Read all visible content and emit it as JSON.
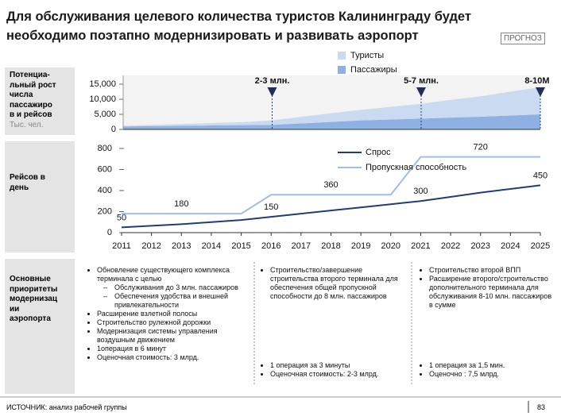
{
  "title": [
    "Для обслуживания целевого количества туристов Калининграду будет",
    "необходимо поэтапно модернизировать и развивать аэропорт"
  ],
  "badge": "ПРОГНОЗ",
  "chart_data": [
    {
      "type": "area",
      "stacked": true,
      "side_label": [
        "Потенциа-",
        "льный рост",
        "числа",
        "пассажиро",
        "в и рейсов"
      ],
      "unit": "Тыс. чел.",
      "x": [
        2011,
        2012,
        2013,
        2014,
        2015,
        2016,
        2017,
        2018,
        2019,
        2020,
        2021,
        2022,
        2023,
        2024,
        2025
      ],
      "xlim": [
        2011,
        2025
      ],
      "ylim": [
        0,
        15000
      ],
      "yticks": [
        0,
        {
          "value": 5000,
          "label": "5,000"
        },
        {
          "value": 10000,
          "label": "10,000"
        },
        {
          "value": 15000,
          "label": "15,000"
        }
      ],
      "series": [
        {
          "name": "Туристы",
          "color": "#c9daf1",
          "values": [
            200,
            400,
            600,
            800,
            1000,
            1500,
            2200,
            2900,
            3500,
            4200,
            4900,
            5900,
            6800,
            7900,
            9000
          ]
        },
        {
          "name": "Пассажиры",
          "color": "#8fb0e2",
          "values": [
            1000,
            1100,
            1200,
            1300,
            1400,
            1500,
            2000,
            2500,
            3000,
            3300,
            3600,
            3900,
            4200,
            4600,
            5000
          ]
        }
      ],
      "annotations": [
        {
          "x": 2016,
          "text": "2-3 млн."
        },
        {
          "x": 2021,
          "text": "5-7 млн."
        },
        {
          "x": 2025,
          "text": "8-10М"
        }
      ]
    },
    {
      "type": "line",
      "side_label": [
        "Рейсов в",
        "день"
      ],
      "x": [
        2011,
        2012,
        2013,
        2014,
        2015,
        2016,
        2017,
        2018,
        2019,
        2020,
        2021,
        2022,
        2023,
        2024,
        2025
      ],
      "xlim": [
        2011,
        2025
      ],
      "xticks": [
        2011,
        2012,
        2013,
        2014,
        2015,
        2016,
        2017,
        2018,
        2019,
        2020,
        2021,
        2022,
        2023,
        2024,
        2025
      ],
      "ylim": [
        0,
        800
      ],
      "yticks": [
        0,
        200,
        400,
        600,
        800
      ],
      "series": [
        {
          "name": "Спрос",
          "color": "#1f3d7a",
          "values": [
            50,
            65,
            80,
            100,
            120,
            150,
            180,
            210,
            240,
            270,
            300,
            340,
            380,
            415,
            450
          ],
          "value_labels": [
            "50",
            null,
            null,
            null,
            null,
            "150",
            null,
            null,
            null,
            null,
            "300",
            null,
            null,
            null,
            "450"
          ]
        },
        {
          "name": "Пропускная способность",
          "color": "#a3bde3",
          "values": [
            180,
            180,
            180,
            180,
            180,
            360,
            360,
            360,
            360,
            360,
            720,
            720,
            720,
            720,
            720
          ],
          "value_labels": [
            null,
            null,
            "180",
            null,
            null,
            null,
            null,
            "360",
            null,
            null,
            null,
            null,
            "720",
            null,
            null
          ]
        }
      ]
    }
  ],
  "priorities": {
    "label": [
      "Основные",
      "приоритеты",
      "модернизац",
      "ии",
      "аэропорта"
    ],
    "columns": [
      {
        "items": [
          {
            "text": "Обновление существующего комплекса терминала с целью",
            "sub": [
              "Обслуживания до 3 млн. пассажиров",
              "Обеспечения удобства и внешней привлекательности"
            ]
          },
          {
            "text": "Расширение взлетной полосы"
          },
          {
            "text": "Строительство рулежной дорожки"
          },
          {
            "text": "Модернизация системы управления воздушным движением"
          },
          {
            "text": "1операция в 6 минут"
          },
          {
            "text": "Оценочная стоимость: 3 млрд."
          }
        ]
      },
      {
        "items": [
          {
            "text": "Строительство/завершение строительства второго терминала для обеспечения общей пропускной способности до 8 млн. пассажиров"
          }
        ],
        "bottom": [
          "1 операция за 3 минуты",
          "Оценочная стоимость: 2-3 млрд."
        ]
      },
      {
        "items": [
          {
            "text": "Строительство второй ВПП"
          },
          {
            "text": "Расширение второго/строительство дополнительного терминала для обслуживания 8-10 млн. пассажиров в сумме"
          }
        ],
        "bottom": [
          "1 операция за 1,5 мин.",
          "Оценочно : 7,5 млрд."
        ]
      }
    ]
  },
  "footer": {
    "source": "ИСТОЧНИК: анализ рабочей группы",
    "page": "83"
  }
}
